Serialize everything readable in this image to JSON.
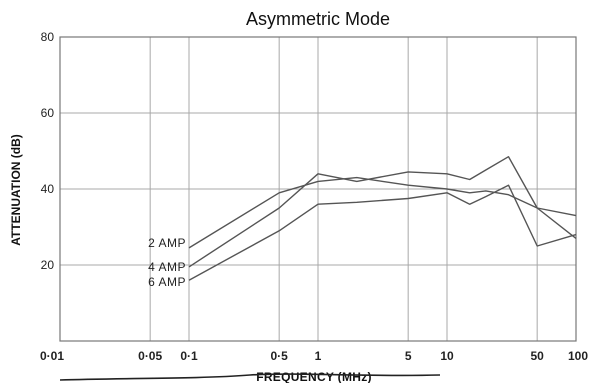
{
  "chart_data": {
    "type": "line",
    "title": "Asymmetric Mode",
    "xlabel": "FREQUENCY (MHz)",
    "ylabel": "ATTENUATION (dB)",
    "xscale": "log",
    "xlim": [
      0.01,
      100
    ],
    "ylim": [
      0,
      80
    ],
    "x_ticks": [
      0.01,
      0.05,
      0.1,
      0.5,
      1,
      5,
      10,
      50,
      100
    ],
    "x_tick_labels": [
      "0·01",
      "0·05",
      "0·1",
      "0·5",
      "1",
      "5",
      "10",
      "50",
      "100"
    ],
    "y_ticks": [
      20,
      40,
      60,
      80
    ],
    "y_tick_labels": [
      "20",
      "40",
      "60",
      "80"
    ],
    "grid": true,
    "series": [
      {
        "name": "2 AMP",
        "x": [
          0.1,
          0.5,
          1,
          2,
          5,
          10,
          15,
          20,
          30,
          50,
          100
        ],
        "y": [
          24.5,
          39,
          42,
          43,
          41,
          40,
          39,
          39.5,
          38.5,
          35,
          33
        ]
      },
      {
        "name": "4 AMP",
        "x": [
          0.1,
          0.5,
          1,
          2,
          5,
          10,
          15,
          20,
          30,
          50,
          100
        ],
        "y": [
          19.5,
          35,
          44,
          42,
          44.5,
          44,
          42.5,
          45,
          48.5,
          35,
          27
        ]
      },
      {
        "name": "6 AMP",
        "x": [
          0.1,
          0.5,
          1,
          2,
          5,
          10,
          15,
          20,
          30,
          50,
          100
        ],
        "y": [
          16,
          29,
          36,
          36.5,
          37.5,
          39,
          36,
          38,
          41,
          25,
          28
        ]
      }
    ]
  }
}
